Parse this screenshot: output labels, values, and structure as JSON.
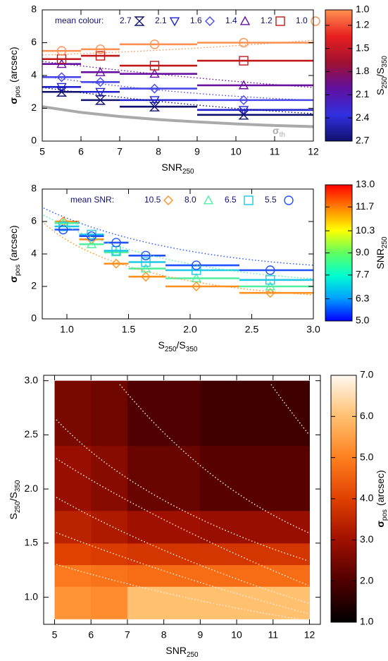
{
  "chart_data": [
    {
      "type": "scatter",
      "x_label": [
        "SNR",
        "250"
      ],
      "y_label": [
        "σ",
        "pos",
        "(arcsec)"
      ],
      "xlim": [
        5,
        12
      ],
      "xticks": [
        5,
        6,
        7,
        8,
        9,
        10,
        11,
        12
      ],
      "ylim": [
        0,
        8
      ],
      "yticks": [
        0,
        2,
        4,
        6,
        8
      ],
      "x": [
        5.5,
        6.5,
        7.9,
        10.2
      ],
      "bins": [
        5,
        6,
        7,
        9,
        12
      ],
      "legend": "top",
      "legend_title": "mean colour:",
      "series": [
        {
          "name": "2.7",
          "color": "#10106e",
          "marker": "hourglass",
          "values": [
            3.0,
            2.5,
            2.1,
            1.6
          ]
        },
        {
          "name": "2.1",
          "color": "#2020d0",
          "marker": "triangle-down",
          "values": [
            3.3,
            3.0,
            2.5,
            1.9
          ]
        },
        {
          "name": "1.6",
          "color": "#4848e8",
          "marker": "diamond",
          "values": [
            3.9,
            3.6,
            3.2,
            2.5
          ]
        },
        {
          "name": "1.4",
          "color": "#6a10a0",
          "marker": "triangle",
          "values": [
            4.7,
            4.2,
            4.1,
            3.4
          ]
        },
        {
          "name": "1.2",
          "color": "#c01818",
          "marker": "square",
          "values": [
            5.0,
            5.2,
            4.6,
            4.9
          ]
        },
        {
          "name": "1.0",
          "color": "#ff9050",
          "marker": "circle",
          "values": [
            5.5,
            5.6,
            5.9,
            6.0
          ]
        }
      ],
      "theory": {
        "label": [
          "σ",
          "th"
        ],
        "color": "#aaaaaa",
        "x": [
          5,
          6,
          7,
          8,
          9,
          10,
          11,
          12
        ],
        "values": [
          2.1,
          1.75,
          1.5,
          1.31,
          1.17,
          1.05,
          0.95,
          0.88
        ]
      },
      "colorbar": {
        "label": [
          "S",
          "250",
          "/S",
          "350"
        ],
        "lim": [
          1,
          2.7
        ],
        "inverted": true,
        "ticks": [
          {
            "value": 1,
            "label": "1.0"
          },
          1.2,
          1.5,
          1.8,
          2.1,
          2.4,
          2.7
        ],
        "colormap": [
          "#ff9050",
          "#e82020",
          "#a01030",
          "#6010a0",
          "#3030e0",
          "#10106e"
        ]
      }
    },
    {
      "type": "scatter",
      "x_label": [
        "S",
        "250",
        "/S",
        "350"
      ],
      "y_label": [
        "σ",
        "pos",
        "(arcsec)"
      ],
      "xlim": [
        0.8,
        3
      ],
      "xticks": [
        {
          "value": 1,
          "label": "1.0"
        },
        1.5,
        {
          "value": 2,
          "label": "2.0"
        },
        2.5,
        {
          "value": 3,
          "label": "3.0"
        }
      ],
      "ylim": [
        0,
        8
      ],
      "yticks": [
        0,
        2,
        4,
        6,
        8
      ],
      "x": [
        0.97,
        1.2,
        1.4,
        1.64,
        2.05,
        2.65
      ],
      "bins": [
        0.9,
        1.1,
        1.3,
        1.5,
        1.8,
        2.4,
        3.0
      ],
      "legend": "top",
      "legend_title": "mean SNR:",
      "series": [
        {
          "name": "10.5",
          "color": "#ff9020",
          "marker": "diamond",
          "values": [
            6.0,
            4.9,
            3.4,
            2.6,
            2.0,
            1.6
          ]
        },
        {
          "name": "8.0",
          "color": "#50f0a0",
          "marker": "triangle",
          "values": [
            5.9,
            4.6,
            4.1,
            3.1,
            2.5,
            2.0
          ]
        },
        {
          "name": "6.5",
          "color": "#20c8e8",
          "marker": "square",
          "values": [
            5.7,
            5.2,
            4.2,
            3.5,
            3.0,
            2.4
          ]
        },
        {
          "name": "5.5",
          "color": "#2050ff",
          "marker": "circle",
          "values": [
            5.5,
            5.1,
            4.7,
            3.9,
            3.3,
            3.0
          ]
        }
      ],
      "colorbar": {
        "label": [
          "SNR",
          "250"
        ],
        "lim": [
          5,
          13
        ],
        "inverted": false,
        "ticks": [
          {
            "value": 5,
            "label": "5.0"
          },
          6.3,
          7.7,
          {
            "value": 9,
            "label": "9.0"
          },
          10.3,
          11.7,
          {
            "value": 13,
            "label": "13.0"
          }
        ],
        "colormap": [
          "#0000ff",
          "#00a0ff",
          "#00ffd0",
          "#60ff60",
          "#ffff00",
          "#ff8000",
          "#ff0000"
        ]
      }
    },
    {
      "type": "heatmap",
      "x_label": [
        "SNR",
        "250"
      ],
      "y_label": [
        "S",
        "250",
        "/S",
        "350"
      ],
      "xlim": [
        4.7,
        12.3
      ],
      "xticks": [
        5,
        6,
        7,
        8,
        9,
        10,
        11,
        12
      ],
      "ylim": [
        0.75,
        3.05
      ],
      "yticks": [
        {
          "value": 1,
          "label": "1.0"
        },
        1.5,
        {
          "value": 2,
          "label": "2.0"
        },
        2.5,
        {
          "value": 3,
          "label": "3.0"
        }
      ],
      "x_bins": [
        5,
        6,
        7,
        9,
        12
      ],
      "y_bins": [
        0.8,
        1.1,
        1.3,
        1.5,
        1.8,
        2.4,
        3.0
      ],
      "values": [
        [
          5.3,
          5.2,
          6.0,
          6.0
        ],
        [
          4.9,
          4.8,
          4.7,
          4.7
        ],
        [
          4.0,
          3.9,
          3.8,
          3.8
        ],
        [
          3.4,
          3.2,
          3.0,
          2.9
        ],
        [
          2.9,
          2.7,
          2.3,
          2.1
        ],
        [
          2.5,
          2.4,
          2.0,
          1.8
        ]
      ],
      "colorbar": {
        "label": [
          "σ",
          "pos",
          "(arcsec)"
        ],
        "lim": [
          1,
          7
        ],
        "inverted": false,
        "ticks": [
          {
            "value": 1,
            "label": "1.0"
          },
          {
            "value": 2,
            "label": "2.0"
          },
          {
            "value": 3,
            "label": "3.0"
          },
          {
            "value": 4,
            "label": "4.0"
          },
          {
            "value": 5,
            "label": "5.0"
          },
          {
            "value": 6,
            "label": "6.0"
          },
          {
            "value": 7,
            "label": "7.0"
          }
        ],
        "colormap": [
          "#000000",
          "#500000",
          "#a01000",
          "#e04000",
          "#ff8020",
          "#ffc070",
          "#fff8f0"
        ]
      }
    }
  ]
}
